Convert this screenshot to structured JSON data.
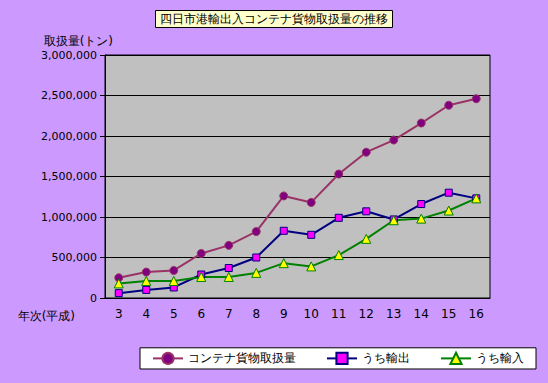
{
  "chart_data": {
    "type": "line",
    "title": "四日市港輸出入コンテナ貨物取扱量の推移",
    "y_label": "取扱量(トン)",
    "x_label": "年次(平成)",
    "categories": [
      "3",
      "4",
      "5",
      "6",
      "7",
      "8",
      "9",
      "10",
      "11",
      "12",
      "13",
      "14",
      "15",
      "16"
    ],
    "series": [
      {
        "name": "コンテナ貨物取扱量",
        "color": "#993366",
        "marker": "circle",
        "values": [
          250000,
          320000,
          340000,
          550000,
          650000,
          820000,
          1260000,
          1180000,
          1530000,
          1800000,
          1950000,
          2160000,
          2380000,
          2460000
        ]
      },
      {
        "name": "うち輸出",
        "color": "#000080",
        "marker": "square",
        "values": [
          60000,
          100000,
          130000,
          290000,
          370000,
          500000,
          830000,
          780000,
          990000,
          1070000,
          970000,
          1160000,
          1300000,
          1230000
        ]
      },
      {
        "name": "うち輸入",
        "color": "#008000",
        "marker": "triangle",
        "values": [
          180000,
          210000,
          210000,
          260000,
          260000,
          310000,
          430000,
          390000,
          530000,
          730000,
          960000,
          980000,
          1080000,
          1230000
        ]
      }
    ],
    "ylim": [
      0,
      3000000
    ],
    "yticks": [
      0,
      {
        "value": 500000,
        "label": "500,000"
      },
      {
        "value": 1000000,
        "label": "1,000,000"
      },
      {
        "value": 1500000,
        "label": "1,500,000"
      },
      {
        "value": 2000000,
        "label": "2,000,000"
      },
      {
        "value": 2500000,
        "label": "2,500,000"
      },
      {
        "value": 3000000,
        "label": "3,000,000"
      }
    ],
    "grid": true,
    "legend": "bottom"
  }
}
